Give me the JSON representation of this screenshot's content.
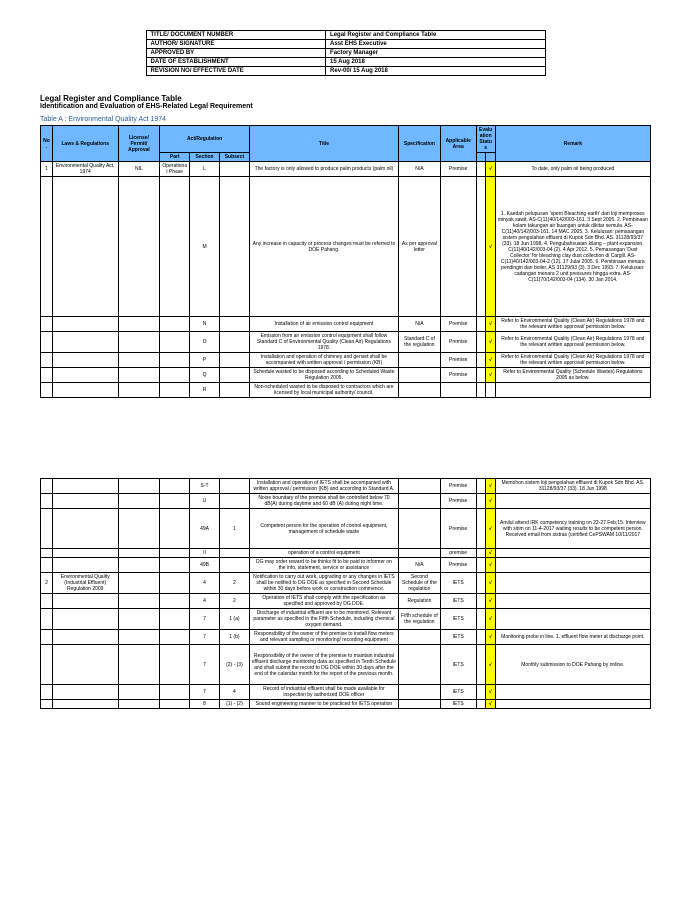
{
  "meta": {
    "rows": [
      [
        "TITLE/ DOCUMENT NUMBER",
        "Legal Register and Compliance Table"
      ],
      [
        "AUTHOR/ SIGNATURE",
        "Asst EHS Executive"
      ],
      [
        "APPROVED BY",
        "Factory Manager"
      ],
      [
        "DATE OF ESTABLISHMENT",
        "15 Aug 2018"
      ],
      [
        "REVISION NO/ EFFECTIVE DATE",
        "Rev-00/ 15 Aug 2018"
      ]
    ]
  },
  "headings": {
    "title": "Legal Register and Compliance Table",
    "subtitle": "Identification and Evaluation of EHS-Related Legal Requirement",
    "tableA": "Table A : Environmental Quality Act 1974"
  },
  "headers": {
    "no": "No.",
    "law": "Laws & Regulations",
    "license": "License/ Permit/ Approval",
    "actreg": "Act/Regulation",
    "part": "Part",
    "section": "Section",
    "subsect": "Subsect",
    "title": "Title",
    "spec": "Specification",
    "area": "Applicable Area",
    "eval": "Evaluation Status",
    "remark": "Remark"
  },
  "rowsA": [
    {
      "no": "1",
      "law": "Environmental Quality Act, 1974",
      "lic": "NIL",
      "part": "Operational Phase",
      "sec": "L",
      "sub": "",
      "title": "The factory is only allowed to produce palm products (palm oil)",
      "spec": "N/A",
      "area": "Premise",
      "ev": "√",
      "remark": "To date, only palm oil being produced"
    },
    {
      "no": "",
      "law": "",
      "lic": "",
      "part": "",
      "sec": "M",
      "sub": "",
      "title": "Any increase in capacity or process changes must be referred to DOE Pahang.",
      "spec": "As per approval letter",
      "area": "",
      "ev": "√",
      "remark": "1. Kaedah pelupusan 'spent Bleaching earth' dari loji memproses minyak sawit. AS-C(11)40/142/003-161. 3 Sept 2005.\n2. Pembinaan kolam takungan air buangan untuk dikitar semula. AS-C(11)40/142/003-161. 14 MAC 2005.\n3. Kelulusan: pemasangan sistem pengolahan effluent di Kupok Sdn Bhd. AS. 31128/93/37 (33). 18 Jun 1998.\n4. Pengubahsuaian kilang – plant expansion. C(11)40/142/003-04 (2). 4 Apr 2012.\n5. Pemasangan 'Dust Collector' for bleaching clay dust collection di Cargill. AS-C(11)40/142/003-04-2 (12). 17 Julai 2005.\n6. Pembinaan menara pendingin dan boiler. AS 31129/93 (3). 3 Dec 1993.\n7. Kelulusan: cadangan menara 2 unit pressures hingga extra. AS-C(11)70/142/003-04 (134). 30 Jan 2014."
    },
    {
      "no": "",
      "law": "",
      "lic": "",
      "part": "",
      "sec": "N",
      "sub": "",
      "title": "Installation of air emission control equipment",
      "spec": "N/A",
      "area": "Premise",
      "ev": "√",
      "remark": "Refer to Environmental Quality (Clean Air) Regulations 1978 and the relevant written approval/ permission below."
    },
    {
      "no": "",
      "law": "",
      "lic": "",
      "part": "",
      "sec": "O",
      "sub": "",
      "title": "Emission from air emission control equipment shall follow Standard C of Environmental Quality (Clean Air) Regulations 1978.",
      "spec": "Standard C of the regulation",
      "area": "Premise",
      "ev": "√",
      "remark": "Refer to Environmental Quality (Clean Air) Regulations 1978 and the relevant written approval/ permission below."
    },
    {
      "no": "",
      "law": "",
      "lic": "",
      "part": "",
      "sec": "P",
      "sub": "",
      "title": "Installation and operation of chimney and genset shall be accompanied with written approval / permission (KB)",
      "spec": "",
      "area": "Premise",
      "ev": "√",
      "remark": "Refer to Environmental Quality (Clean Air) Regulations 1978 and the relevant written approval/ permission below."
    },
    {
      "no": "",
      "law": "",
      "lic": "",
      "part": "",
      "sec": "Q",
      "sub": "",
      "title": "Schedule wasted to be disposed according to Scheduled Waste Regulation 2005.",
      "spec": "",
      "area": "Premise",
      "ev": "√",
      "remark": "Refer to Environmental Quality (Schedule Wastes) Regulations 2005 as below."
    },
    {
      "no": "",
      "law": "",
      "lic": "",
      "part": "",
      "sec": "R",
      "sub": "",
      "title": "Non-scheduled wasted to be disposed to contractors which are licensed by local municipal authority/ council.",
      "spec": "",
      "area": "",
      "ev": "",
      "remark": ""
    }
  ],
  "rowsB": [
    {
      "no": "",
      "law": "",
      "lic": "",
      "part": "",
      "sec": "S-T",
      "sub": "",
      "title": "Installation and operation of IETS shall be accompanied with written approval / permission (KB) and according to Standard A.",
      "spec": "",
      "area": "Premise",
      "ev": "√",
      "remark": "Memohon sistem loji pengolahan effluent di Kupok Sdn Bhd. AS. 31128/93/37 (33). 18 Jun 1998"
    },
    {
      "no": "",
      "law": "",
      "lic": "",
      "part": "",
      "sec": "U",
      "sub": "",
      "title": "Noise boundary of the premise shall be controlled below 70 dB(A) during daytime and 60 dB (A) during night time.",
      "spec": "",
      "area": "Premise",
      "ev": "√",
      "remark": ""
    },
    {
      "no": "",
      "law": "",
      "lic": "",
      "part": "",
      "sec": "49A",
      "sub": "1",
      "title": "Competent person for the operation of control equipment, management of schedule waste",
      "spec": "",
      "area": "Premise",
      "ev": "√",
      "remark": "Amilul attend IRK competency training on 22-27 Feb;15. Interview with sirim on 11-4-2017 waiting results to be competent person. Received email from sistras (certified CePSWAM 10/11/2017"
    },
    {
      "no": "",
      "law": "",
      "lic": "",
      "part": "",
      "sec": "II",
      "sub": "",
      "title": "operation of a control equipment",
      "spec": "",
      "area": "premise",
      "ev": "√",
      "remark": ""
    },
    {
      "no": "",
      "law": "",
      "lic": "",
      "part": "",
      "sec": "49B",
      "sub": "",
      "title": "DG may order reward to be thinks fit to be paid to informer on the info, statement, service or assistance",
      "spec": "N/A",
      "area": "Premise",
      "ev": "√",
      "remark": ""
    },
    {
      "no": "2",
      "law": "Environmental Quality (Industrial Effluent) Regulation 2009",
      "lic": "",
      "part": "",
      "sec": "4",
      "sub": "2",
      "title": "Notification to carry out work, upgrading or any changes in IETS shall be notified to DG DOE as specified in Second Schedule within 30 days before work or construction commence.",
      "spec": "Second Schedule of the regulation",
      "area": "IETS",
      "ev": "√",
      "remark": ""
    },
    {
      "no": "",
      "law": "",
      "lic": "",
      "part": "",
      "sec": "4",
      "sub": "2",
      "title": "Operation of IETS shall comply with the specification as specified and approved by DG DOE.",
      "spec": "Regulation",
      "area": "IETS",
      "ev": "√",
      "remark": ""
    },
    {
      "no": "",
      "law": "",
      "lic": "",
      "part": "",
      "sec": "7",
      "sub": "1 (a)",
      "title": "Discharge of industrial effluent are to be monitored. Relevant parameter as specified in the Fifth Schedule, including chemical oxygen demand.",
      "spec": "Fifth schedule of the regulation",
      "area": "IETS",
      "ev": "√",
      "remark": ""
    },
    {
      "no": "",
      "law": "",
      "lic": "",
      "part": "",
      "sec": "7",
      "sub": "1 (b)",
      "title": "Responsibility of the owner of the premise to install flow meters and relevant sampling or monitoring/ recording equipment",
      "spec": "",
      "area": "IETS",
      "ev": "√",
      "remark": "Monitoring probe in line.\n1. effluent flow meter at discharge point."
    },
    {
      "no": "",
      "law": "",
      "lic": "",
      "part": "",
      "sec": "7",
      "sub": "(2) - (3)",
      "title": "Responsibility of the owner of the premise to maintain industrial effluent discharge monitoring data as specified in Tenth Schedule and shall submit the record to DG DOE within 30 days after the end of the calendar month for the report of the previous month.",
      "spec": "",
      "area": "IETS",
      "ev": "√",
      "remark": "Monthly submission to DOE Pahang by online."
    },
    {
      "no": "",
      "law": "",
      "lic": "",
      "part": "",
      "sec": "7",
      "sub": "4",
      "title": "Record of industrial effluent shall be made available for inspection by authorized DOE officer",
      "spec": "",
      "area": "IETS",
      "ev": "√",
      "remark": ""
    },
    {
      "no": "",
      "law": "",
      "lic": "",
      "part": "",
      "sec": "8",
      "sub": "(1) - (2)",
      "title": "Sound engineering manner to be practiced for IETS operation",
      "spec": "",
      "area": "IETS",
      "ev": "√",
      "remark": ""
    }
  ]
}
